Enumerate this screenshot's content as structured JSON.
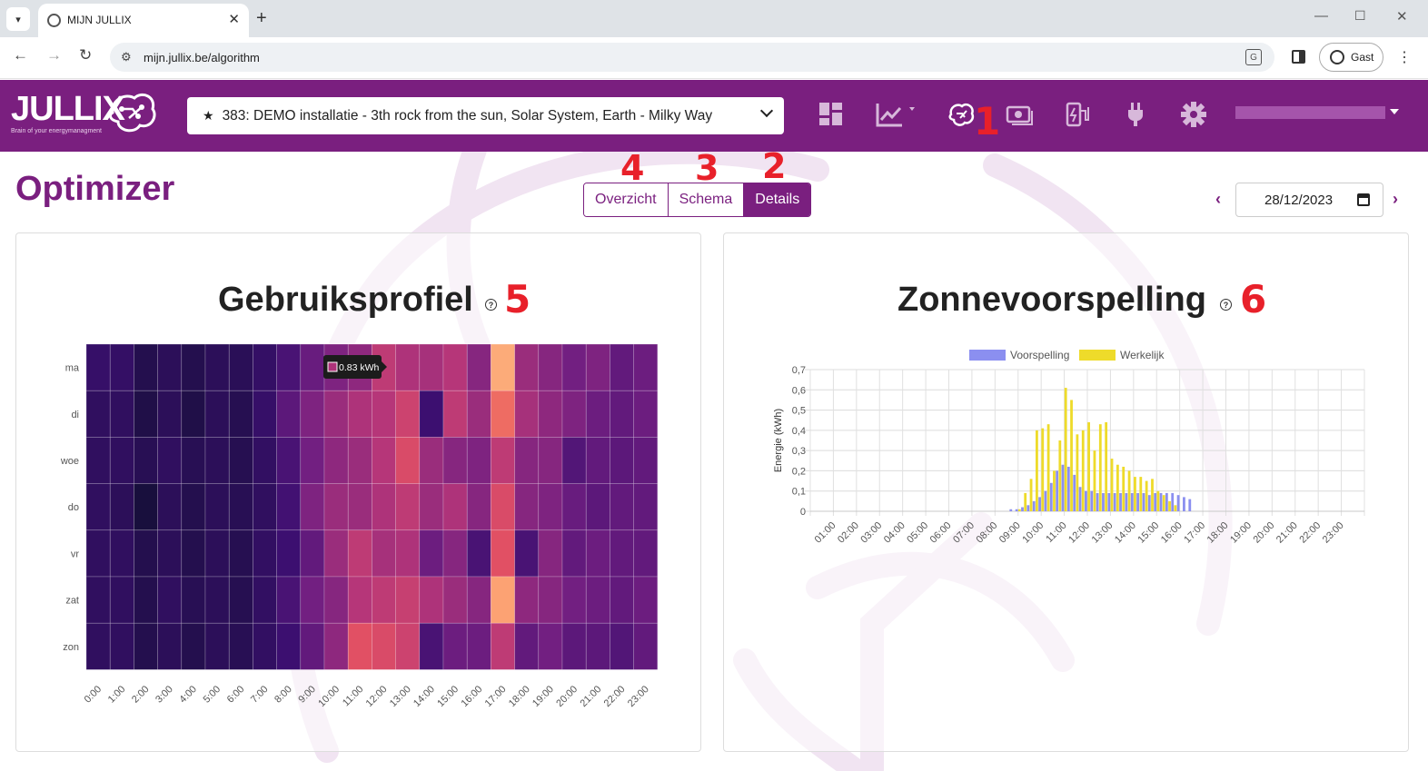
{
  "browser": {
    "tab_title": "MIJN JULLIX",
    "url": "mijn.jullix.be/algorithm",
    "profile_label": "Gast"
  },
  "header": {
    "logo_text": "JULLIX",
    "logo_tagline": "Brain of your energymanagment",
    "installation": "383: DEMO installatie - 3th rock from the sun, Solar System, Earth - Milky Way",
    "nav_icons": [
      "dashboard-icon",
      "chart-icon",
      "brain-icon",
      "money-icon",
      "ev-charger-icon",
      "plug-icon",
      "gear-icon"
    ],
    "brand_color": "#7a1f7f"
  },
  "page": {
    "title": "Optimizer",
    "tabs": [
      "Overzicht",
      "Schema",
      "Details"
    ],
    "active_tab": "Details",
    "date": "28/12/2023"
  },
  "annotations": {
    "n1": "1",
    "n2": "2",
    "n3": "3",
    "n4": "4",
    "n5": "5",
    "n6": "6"
  },
  "usage_card": {
    "title": "Gebruiksprofiel",
    "tooltip": "0.83 kWh"
  },
  "solar_card": {
    "title": "Zonnevoorspelling"
  },
  "chart_data": [
    {
      "type": "heatmap",
      "title": "Gebruiksprofiel",
      "rows": [
        "ma",
        "di",
        "woe",
        "do",
        "vr",
        "zat",
        "zon"
      ],
      "columns": [
        "0:00",
        "1:00",
        "2:00",
        "3:00",
        "4:00",
        "5:00",
        "6:00",
        "7:00",
        "8:00",
        "9:00",
        "10:00",
        "11:00",
        "12:00",
        "13:00",
        "14:00",
        "15:00",
        "16:00",
        "17:00",
        "18:00",
        "19:00",
        "20:00",
        "21:00",
        "22:00",
        "23:00"
      ],
      "values": [
        [
          0.15,
          0.14,
          0.06,
          0.1,
          0.06,
          0.1,
          0.09,
          0.14,
          0.22,
          0.32,
          0.38,
          0.42,
          0.55,
          0.5,
          0.48,
          0.52,
          0.4,
          0.9,
          0.45,
          0.4,
          0.35,
          0.38,
          0.3,
          0.33
        ],
        [
          0.12,
          0.12,
          0.04,
          0.1,
          0.04,
          0.1,
          0.07,
          0.15,
          0.28,
          0.38,
          0.45,
          0.5,
          0.52,
          0.6,
          0.18,
          0.55,
          0.45,
          0.75,
          0.48,
          0.42,
          0.38,
          0.33,
          0.3,
          0.33
        ],
        [
          0.12,
          0.12,
          0.08,
          0.12,
          0.08,
          0.1,
          0.07,
          0.13,
          0.22,
          0.35,
          0.42,
          0.45,
          0.52,
          0.65,
          0.45,
          0.4,
          0.38,
          0.55,
          0.4,
          0.4,
          0.25,
          0.3,
          0.28,
          0.3
        ],
        [
          0.12,
          0.1,
          0.0,
          0.1,
          0.06,
          0.1,
          0.08,
          0.12,
          0.2,
          0.38,
          0.45,
          0.45,
          0.5,
          0.55,
          0.45,
          0.5,
          0.4,
          0.65,
          0.4,
          0.38,
          0.32,
          0.28,
          0.3,
          0.3
        ],
        [
          0.12,
          0.12,
          0.06,
          0.1,
          0.06,
          0.1,
          0.07,
          0.13,
          0.18,
          0.3,
          0.45,
          0.55,
          0.48,
          0.5,
          0.33,
          0.4,
          0.22,
          0.68,
          0.22,
          0.4,
          0.3,
          0.33,
          0.3,
          0.3
        ],
        [
          0.12,
          0.12,
          0.06,
          0.12,
          0.08,
          0.1,
          0.07,
          0.13,
          0.22,
          0.35,
          0.4,
          0.52,
          0.55,
          0.58,
          0.5,
          0.45,
          0.4,
          0.88,
          0.42,
          0.4,
          0.35,
          0.33,
          0.3,
          0.33
        ],
        [
          0.12,
          0.12,
          0.06,
          0.1,
          0.06,
          0.1,
          0.08,
          0.13,
          0.18,
          0.3,
          0.42,
          0.68,
          0.65,
          0.6,
          0.22,
          0.33,
          0.33,
          0.55,
          0.3,
          0.35,
          0.28,
          0.28,
          0.25,
          0.3
        ]
      ],
      "colorscale": "magma"
    },
    {
      "type": "bar",
      "title": "Zonnevoorspelling",
      "ylabel": "Energie (kWh)",
      "ylim": [
        0,
        0.7
      ],
      "yticks": [
        "0",
        "0,1",
        "0,2",
        "0,3",
        "0,4",
        "0,5",
        "0,6",
        "0,7"
      ],
      "xticks": [
        "01:00",
        "02:00",
        "03:00",
        "04:00",
        "05:00",
        "06:00",
        "07:00",
        "08:00",
        "09:00",
        "10:00",
        "11:00",
        "12:00",
        "13:00",
        "14:00",
        "15:00",
        "16:00",
        "17:00",
        "18:00",
        "19:00",
        "20:00",
        "21:00",
        "22:00",
        "23:00"
      ],
      "x_start": "08:45",
      "x_step_minutes": 15,
      "series": [
        {
          "name": "Voorspelling",
          "color": "#8b8ff0",
          "values": [
            0.01,
            0.01,
            0.02,
            0.03,
            0.05,
            0.07,
            0.1,
            0.14,
            0.2,
            0.23,
            0.22,
            0.18,
            0.12,
            0.1,
            0.1,
            0.09,
            0.09,
            0.09,
            0.09,
            0.09,
            0.09,
            0.09,
            0.09,
            0.09,
            0.08,
            0.09,
            0.09,
            0.09,
            0.09,
            0.08,
            0.07,
            0.06
          ]
        },
        {
          "name": "Werkelijk",
          "color": "#eedb2a",
          "values": [
            0.0,
            0.01,
            0.09,
            0.16,
            0.4,
            0.41,
            0.43,
            0.2,
            0.35,
            0.61,
            0.55,
            0.38,
            0.4,
            0.44,
            0.3,
            0.43,
            0.44,
            0.26,
            0.23,
            0.22,
            0.2,
            0.17,
            0.17,
            0.15,
            0.16,
            0.1,
            0.08,
            0.05,
            0.03,
            0.0,
            0.0,
            0.0
          ]
        }
      ]
    }
  ]
}
